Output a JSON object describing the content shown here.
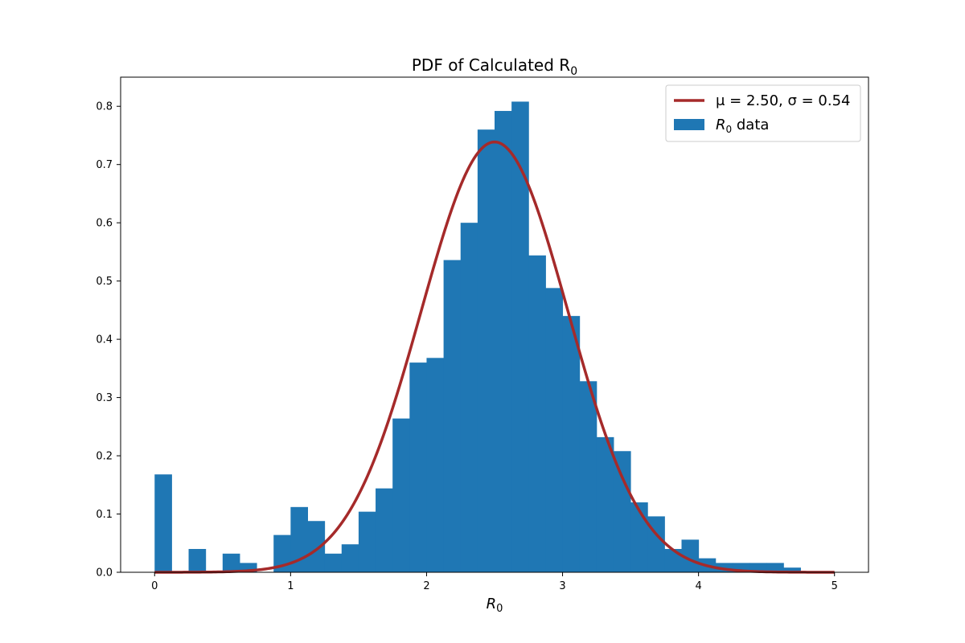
{
  "chart_data": {
    "type": "bar",
    "title": "PDF of Calculated R",
    "title_sub": "0",
    "xlabel": "R",
    "xlabel_sub": "0",
    "ylabel": "",
    "xlim": [
      -0.25,
      5.25
    ],
    "ylim": [
      0,
      0.85
    ],
    "x_ticks": [
      "0",
      "1",
      "2",
      "3",
      "4",
      "5"
    ],
    "y_ticks": [
      "0.0",
      "0.1",
      "0.2",
      "0.3",
      "0.4",
      "0.5",
      "0.6",
      "0.7",
      "0.8"
    ],
    "grid": false,
    "legend_position": "upper right",
    "histogram": {
      "name": "R₀ data",
      "color": "#1f77b4",
      "bin_edges": [
        0,
        0.125,
        0.25,
        0.375,
        0.5,
        0.625,
        0.75,
        0.875,
        1.0,
        1.125,
        1.25,
        1.375,
        1.5,
        1.625,
        1.75,
        1.875,
        2.0,
        2.125,
        2.25,
        2.375,
        2.5,
        2.625,
        2.75,
        2.875,
        3.0,
        3.125,
        3.25,
        3.375,
        3.5,
        3.625,
        3.75,
        3.875,
        4.0,
        4.125,
        4.25,
        4.375,
        4.5,
        4.625,
        4.75,
        4.875,
        5.0
      ],
      "values": [
        0.168,
        0,
        0.04,
        0,
        0.032,
        0.016,
        0,
        0.064,
        0.112,
        0.088,
        0.032,
        0.048,
        0.104,
        0.144,
        0.264,
        0.36,
        0.368,
        0.536,
        0.6,
        0.76,
        0.792,
        0.808,
        0.544,
        0.488,
        0.44,
        0.328,
        0.232,
        0.208,
        0.12,
        0.096,
        0.04,
        0.056,
        0.024,
        0.016,
        0.016,
        0.016,
        0.016,
        0.008,
        0,
        0
      ]
    },
    "fit": {
      "name": "μ = 2.50, σ = 0.54",
      "color": "#a52a2a",
      "mu": 2.5,
      "sigma": 0.54,
      "x_range": [
        0,
        5
      ]
    }
  },
  "legend": {
    "fit_label": "μ = 2.50, σ = 0.54",
    "data_label": "R",
    "data_label_sub": "0",
    "data_label_suffix": " data"
  }
}
